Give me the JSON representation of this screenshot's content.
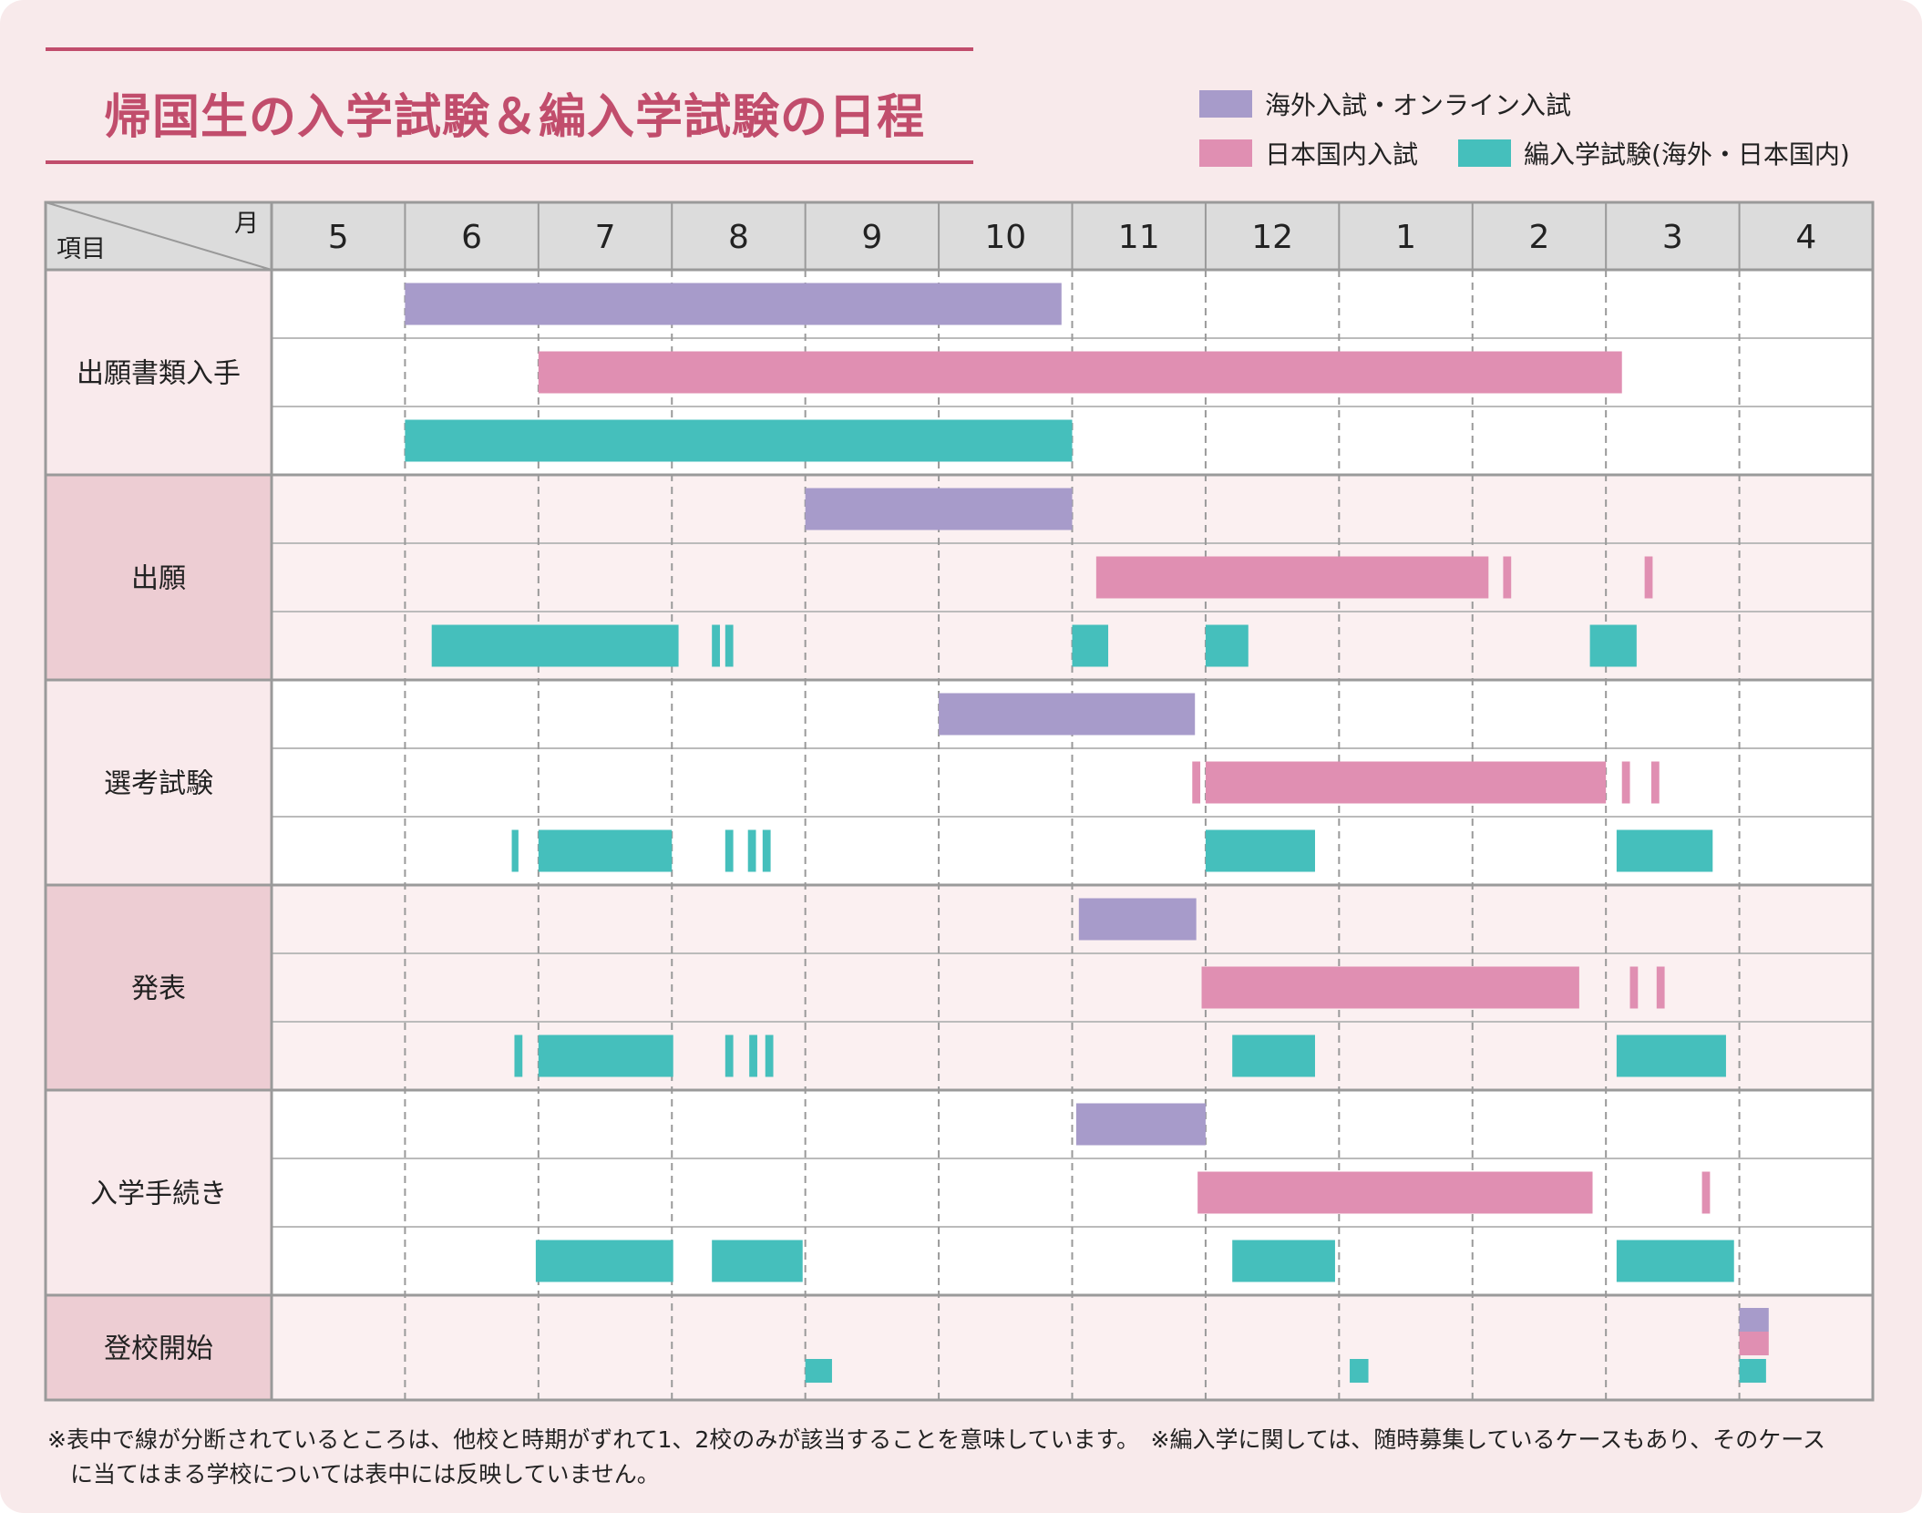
{
  "title": "帰国生の入学試験＆編入学試験の日程",
  "legend": [
    {
      "label": "海外入試・オンライン入試",
      "color": "#a79bca"
    },
    {
      "label": "日本国内入試",
      "color": "#e08fb2"
    },
    {
      "label": "編入学試験(海外・日本国内)",
      "color": "#45bfbc"
    }
  ],
  "header": {
    "corner_top": "月",
    "corner_bottom": "項目"
  },
  "chart_data": {
    "type": "gantt",
    "months": [
      "5",
      "6",
      "7",
      "8",
      "9",
      "10",
      "11",
      "12",
      "1",
      "2",
      "3",
      "4"
    ],
    "row_labels": [
      "出願書類入手",
      "出願",
      "選考試験",
      "発表",
      "入学手続き",
      "登校開始"
    ],
    "series_colors": {
      "overseas": "#a79bca",
      "domestic": "#e08fb2",
      "transfer": "#45bfbc"
    },
    "note": "bar start/end in month units: 0 = start of May, 12 = end of April",
    "rows": [
      {
        "label": "出願書類入手",
        "overseas": [
          [
            1.0,
            5.92
          ]
        ],
        "domestic": [
          [
            2.0,
            10.12
          ]
        ],
        "transfer": [
          [
            1.0,
            6.0
          ]
        ]
      },
      {
        "label": "出願",
        "overseas": [
          [
            4.0,
            6.0
          ]
        ],
        "domestic": [
          [
            6.18,
            9.12
          ],
          [
            9.23,
            9.29
          ],
          [
            10.29,
            10.35
          ]
        ],
        "transfer": [
          [
            1.2,
            3.05
          ],
          [
            3.3,
            3.36
          ],
          [
            3.4,
            3.46
          ],
          [
            6.0,
            6.27
          ],
          [
            7.0,
            7.32
          ],
          [
            9.88,
            10.23
          ]
        ]
      },
      {
        "label": "選考試験",
        "overseas": [
          [
            5.0,
            6.92
          ]
        ],
        "domestic": [
          [
            6.9,
            6.96
          ],
          [
            7.0,
            10.0
          ],
          [
            10.12,
            10.18
          ],
          [
            10.34,
            10.4
          ]
        ],
        "transfer": [
          [
            1.8,
            1.85
          ],
          [
            2.0,
            3.0
          ],
          [
            3.4,
            3.46
          ],
          [
            3.57,
            3.63
          ],
          [
            3.68,
            3.74
          ],
          [
            7.0,
            7.82
          ],
          [
            10.08,
            10.8
          ]
        ]
      },
      {
        "label": "発表",
        "overseas": [
          [
            6.05,
            6.93
          ]
        ],
        "domestic": [
          [
            6.97,
            9.8
          ],
          [
            10.18,
            10.24
          ],
          [
            10.38,
            10.44
          ]
        ],
        "transfer": [
          [
            1.82,
            1.88
          ],
          [
            2.0,
            3.01
          ],
          [
            3.4,
            3.46
          ],
          [
            3.58,
            3.64
          ],
          [
            3.7,
            3.76
          ],
          [
            7.2,
            7.82
          ],
          [
            10.08,
            10.9
          ]
        ]
      },
      {
        "label": "入学手続き",
        "overseas": [
          [
            6.03,
            7.0
          ]
        ],
        "domestic": [
          [
            6.94,
            9.9
          ],
          [
            10.72,
            10.78
          ]
        ],
        "transfer": [
          [
            1.98,
            3.01
          ],
          [
            3.3,
            3.98
          ],
          [
            7.2,
            7.97
          ],
          [
            10.08,
            10.96
          ]
        ]
      },
      {
        "label": "登校開始",
        "overseas": [
          [
            11.0,
            11.22
          ]
        ],
        "domestic": [
          [
            11.0,
            11.22
          ]
        ],
        "transfer": [
          [
            4.0,
            4.2
          ],
          [
            8.08,
            8.22
          ],
          [
            11.0,
            11.2
          ]
        ]
      }
    ]
  },
  "notes": [
    "※表中で線が分断されているところは、他校と時期がずれて1、2校のみが該当することを意味しています。　※編入学に関しては、随時募集しているケースもあり、そのケース",
    "　に当てはまる学校については表中には反映していません。"
  ]
}
